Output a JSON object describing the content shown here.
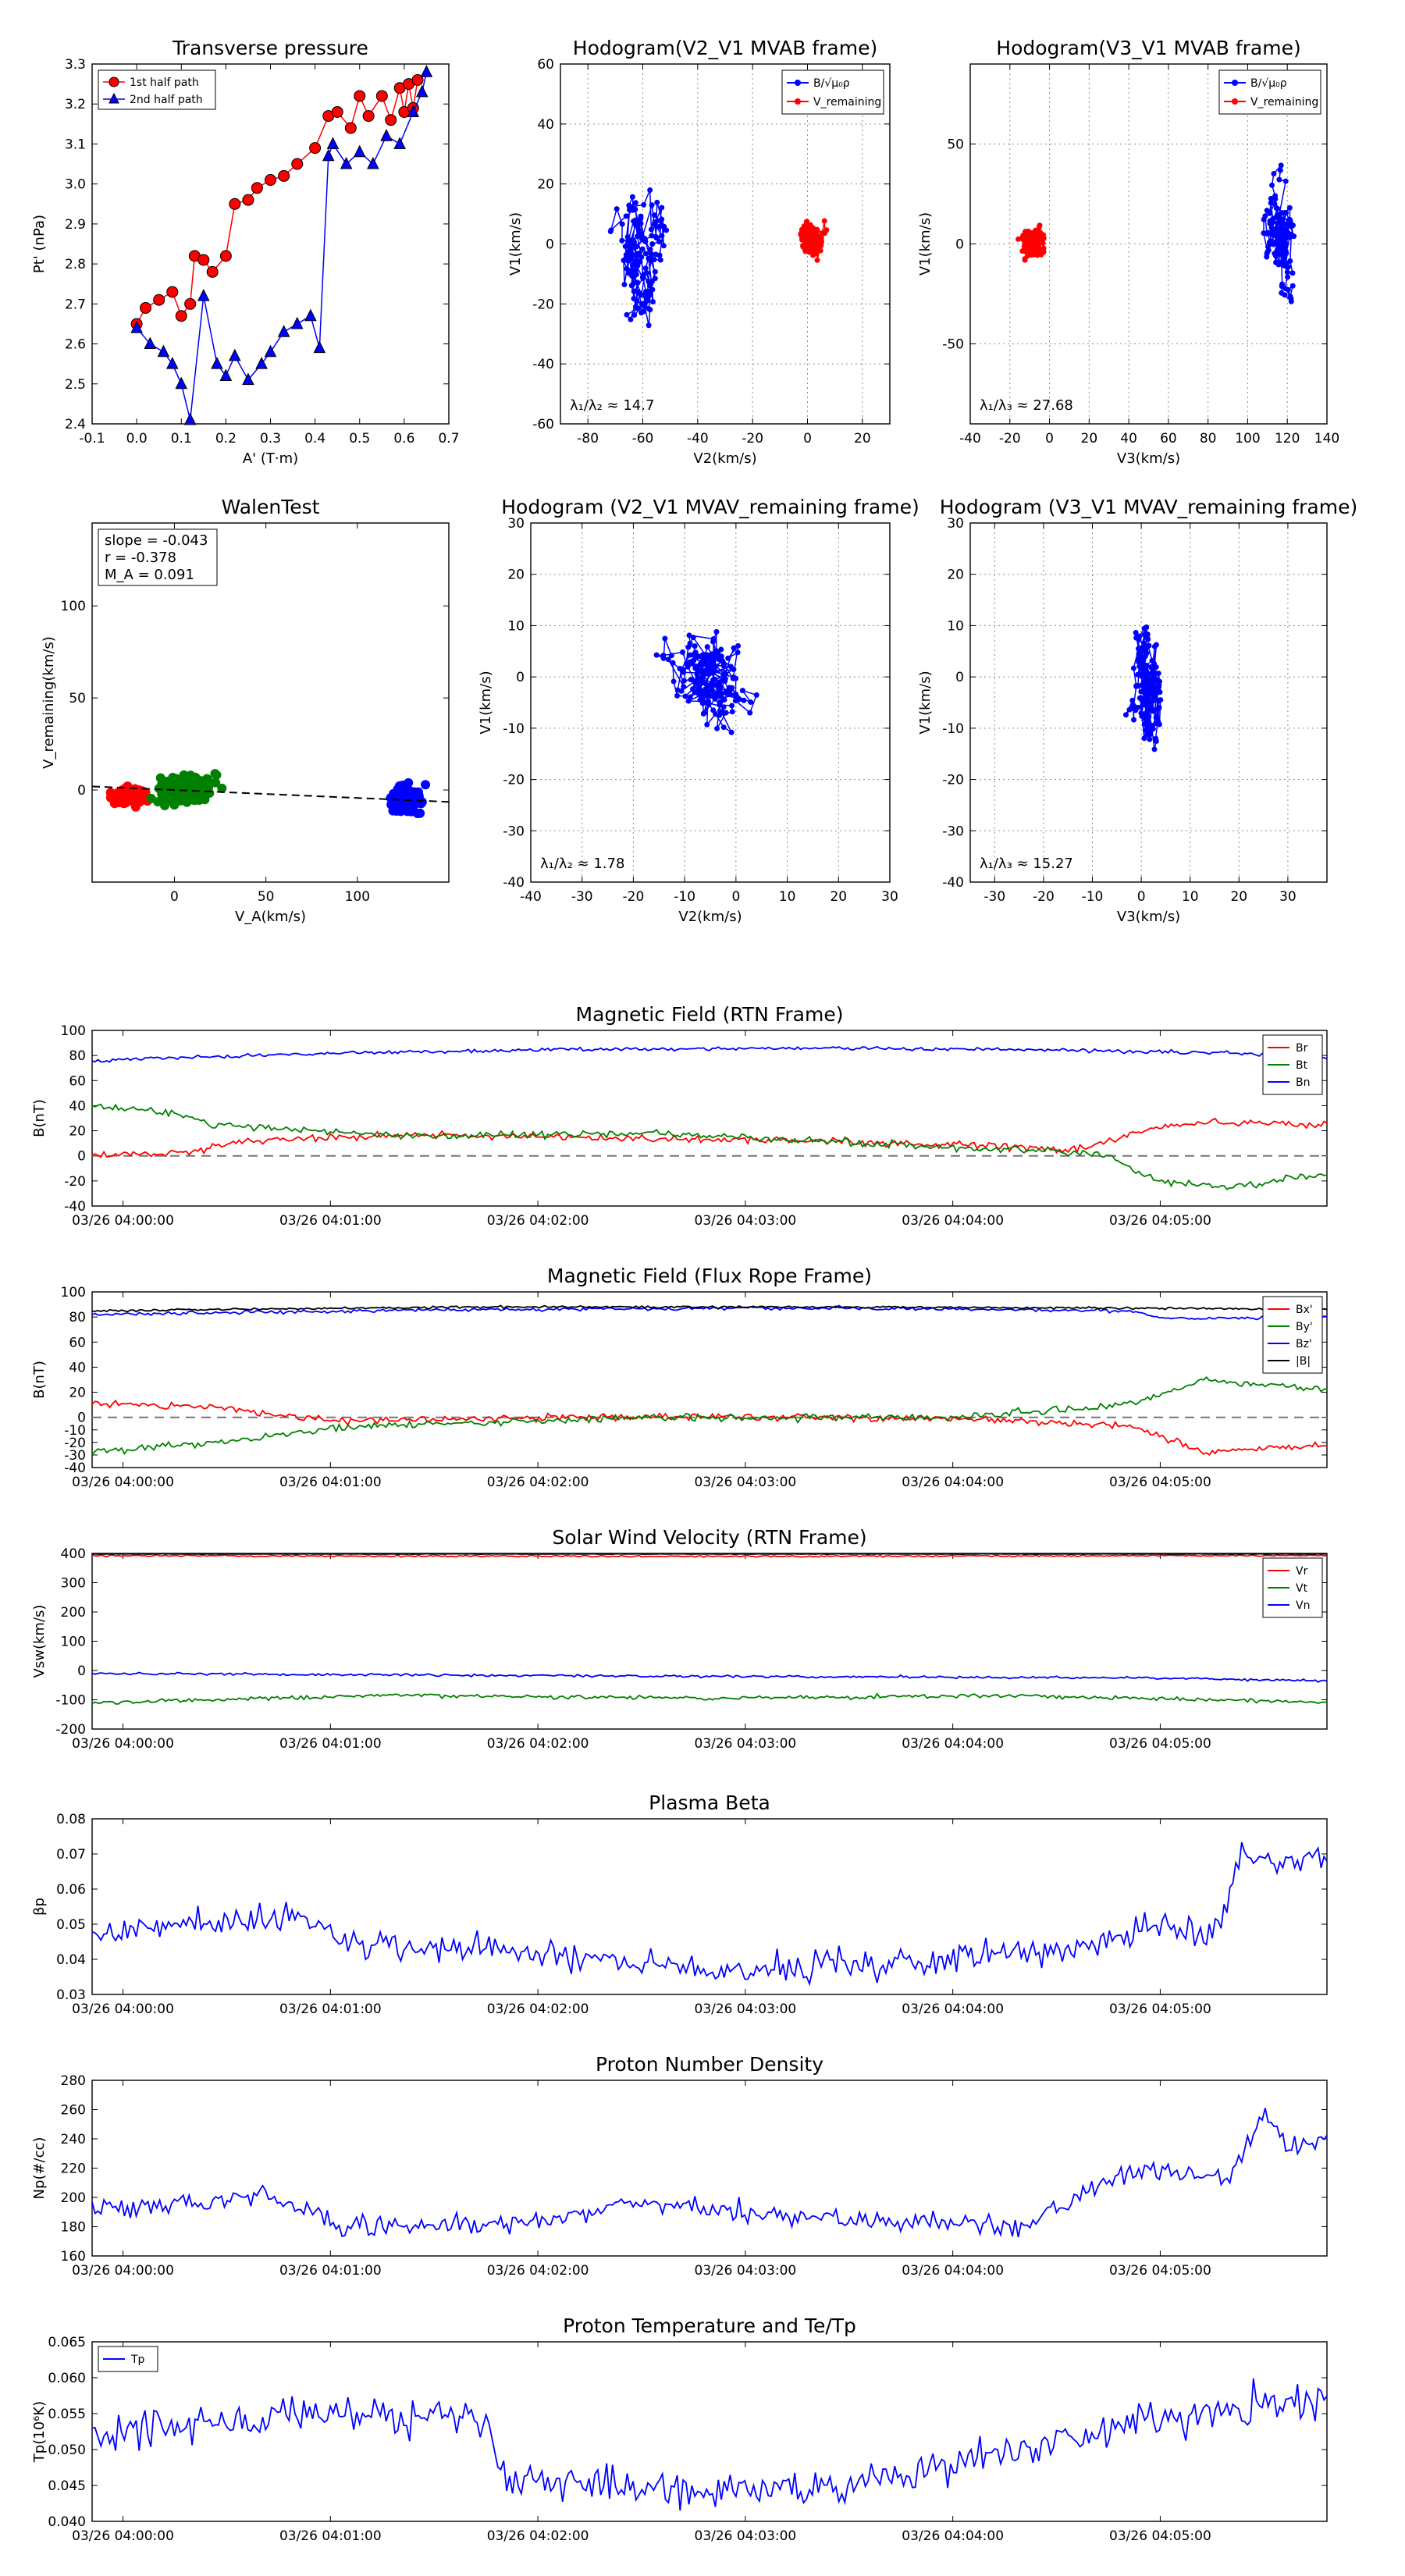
{
  "colors": {
    "red": "#ff0000",
    "green": "#008000",
    "blue": "#0000ff",
    "black": "#000000",
    "gray": "#777777"
  },
  "time_ticks": [
    "03/26 04:00:00",
    "03/26 04:01:00",
    "03/26 04:02:00",
    "03/26 04:03:00",
    "03/26 04:04:00",
    "03/26 04:05:00"
  ],
  "chart_data": [
    {
      "id": "pt",
      "type": "scatter",
      "title": "Transverse pressure",
      "xlabel": "A' (T·m)",
      "ylabel": "Pt' (nPa)",
      "xlim": [
        -0.1,
        0.7
      ],
      "ylim": [
        2.4,
        3.3
      ],
      "xticks": [
        -0.1,
        0.0,
        0.1,
        0.2,
        0.3,
        0.4,
        0.5,
        0.6,
        0.7
      ],
      "yticks": [
        2.4,
        2.5,
        2.6,
        2.7,
        2.8,
        2.9,
        3.0,
        3.1,
        3.2,
        3.3
      ],
      "legend": [
        {
          "label": "1st half path",
          "color": "#ff0000",
          "marker": "circle"
        },
        {
          "label": "2nd half path",
          "color": "#0000ff",
          "marker": "triangle"
        }
      ],
      "series": [
        {
          "name": "1st half path",
          "color": "#ff0000",
          "marker": "circle",
          "x": [
            0.0,
            0.02,
            0.05,
            0.08,
            0.1,
            0.12,
            0.13,
            0.15,
            0.17,
            0.2,
            0.22,
            0.25,
            0.27,
            0.3,
            0.33,
            0.36,
            0.4,
            0.43,
            0.45,
            0.48,
            0.5,
            0.52,
            0.55,
            0.57,
            0.59,
            0.6,
            0.61,
            0.62,
            0.63
          ],
          "y": [
            2.65,
            2.69,
            2.71,
            2.73,
            2.67,
            2.7,
            2.82,
            2.81,
            2.78,
            2.82,
            2.95,
            2.96,
            2.99,
            3.01,
            3.02,
            3.05,
            3.09,
            3.17,
            3.18,
            3.14,
            3.22,
            3.17,
            3.22,
            3.16,
            3.24,
            3.18,
            3.25,
            3.19,
            3.26
          ]
        },
        {
          "name": "2nd half path",
          "color": "#0000ff",
          "marker": "triangle",
          "x": [
            0.0,
            0.03,
            0.06,
            0.08,
            0.1,
            0.12,
            0.15,
            0.18,
            0.2,
            0.22,
            0.25,
            0.28,
            0.3,
            0.33,
            0.36,
            0.39,
            0.41,
            0.43,
            0.44,
            0.47,
            0.5,
            0.53,
            0.56,
            0.59,
            0.62,
            0.64,
            0.65
          ],
          "y": [
            2.64,
            2.6,
            2.58,
            2.55,
            2.5,
            2.41,
            2.72,
            2.55,
            2.52,
            2.57,
            2.51,
            2.55,
            2.58,
            2.63,
            2.65,
            2.67,
            2.59,
            3.07,
            3.1,
            3.05,
            3.08,
            3.05,
            3.12,
            3.1,
            3.18,
            3.23,
            3.28
          ]
        }
      ]
    },
    {
      "id": "h1",
      "type": "line",
      "title": "Hodogram(V2_V1 MVAB frame)",
      "xlabel": "V2(km/s)",
      "ylabel": "V1(km/s)",
      "xlim": [
        -90,
        30
      ],
      "ylim": [
        -60,
        60
      ],
      "xticks": [
        -80,
        -60,
        -40,
        -20,
        0,
        20
      ],
      "yticks": [
        -60,
        -40,
        -20,
        0,
        20,
        40,
        60
      ],
      "legend": [
        {
          "label": "B/√μ₀ρ",
          "color": "#0000ff"
        },
        {
          "label": "V_remaining",
          "color": "#ff0000"
        }
      ],
      "annotation": "λ₁/λ₂ ≈ 14.7",
      "series": [
        {
          "name": "B/√μ₀ρ",
          "color": "#0000ff",
          "center": [
            -62,
            0
          ],
          "spread": [
            9,
            26
          ]
        },
        {
          "name": "V_remaining",
          "color": "#ff0000",
          "center": [
            2,
            0
          ],
          "spread": [
            5,
            10
          ]
        }
      ]
    },
    {
      "id": "h2",
      "type": "line",
      "title": "Hodogram(V3_V1 MVAB frame)",
      "xlabel": "V3(km/s)",
      "ylabel": "V1(km/s)",
      "xlim": [
        -40,
        140
      ],
      "ylim": [
        -90,
        90
      ],
      "xticks": [
        -40,
        -20,
        0,
        20,
        40,
        60,
        80,
        100,
        120,
        140
      ],
      "yticks": [
        -50,
        0,
        50
      ],
      "legend": [
        {
          "label": "B/√μ₀ρ",
          "color": "#0000ff"
        },
        {
          "label": "V_remaining",
          "color": "#ff0000"
        }
      ],
      "annotation": "λ₁/λ₃ ≈ 27.68",
      "series": [
        {
          "name": "B/√μ₀ρ",
          "color": "#0000ff",
          "center": [
            115,
            0
          ],
          "spread": [
            9,
            25
          ]
        },
        {
          "name": "V_remaining",
          "color": "#ff0000",
          "center": [
            -8,
            0
          ],
          "spread": [
            7,
            9
          ]
        }
      ]
    },
    {
      "id": "walen",
      "type": "scatter",
      "title": "WalenTest",
      "xlabel": "V_A(km/s)",
      "ylabel": "V_remaining(km/s)",
      "xlim": [
        -45,
        150
      ],
      "ylim": [
        -50,
        145
      ],
      "xticks": [
        0,
        50,
        100
      ],
      "yticks": [
        0,
        50,
        100
      ],
      "stats": [
        "slope = -0.043",
        "r = -0.378",
        "M_A = 0.091"
      ],
      "fit": {
        "slope": -0.043,
        "intercept": 0
      },
      "series": [
        {
          "name": "red",
          "color": "#ff0000",
          "center": [
            -25,
            -3
          ],
          "spread": [
            10,
            5
          ]
        },
        {
          "name": "green",
          "color": "#008000",
          "center": [
            5,
            0
          ],
          "spread": [
            18,
            9
          ]
        },
        {
          "name": "blue",
          "color": "#0000ff",
          "center": [
            128,
            -5
          ],
          "spread": [
            9,
            8
          ]
        }
      ]
    },
    {
      "id": "h3",
      "type": "line",
      "title": "Hodogram (V2_V1 MVAV_remaining frame)",
      "xlabel": "V2(km/s)",
      "ylabel": "V1(km/s)",
      "xlim": [
        -40,
        30
      ],
      "ylim": [
        -40,
        30
      ],
      "xticks": [
        -40,
        -30,
        -20,
        -10,
        0,
        10,
        20,
        30
      ],
      "yticks": [
        -40,
        -30,
        -20,
        -10,
        0,
        10,
        20,
        30
      ],
      "annotation": "λ₁/λ₂ ≈ 1.78",
      "series": [
        {
          "name": "V",
          "color": "#0000ff",
          "center": [
            -5,
            0
          ],
          "spread": [
            8,
            10
          ]
        }
      ]
    },
    {
      "id": "h4",
      "type": "line",
      "title": "Hodogram (V3_V1 MVAV_remaining frame)",
      "xlabel": "V3(km/s)",
      "ylabel": "V1(km/s)",
      "xlim": [
        -35,
        38
      ],
      "ylim": [
        -40,
        30
      ],
      "xticks": [
        -30,
        -20,
        -10,
        0,
        10,
        20,
        30
      ],
      "yticks": [
        -40,
        -30,
        -20,
        -10,
        0,
        10,
        20,
        30
      ],
      "annotation": "λ₁/λ₃ ≈ 15.27",
      "series": [
        {
          "name": "V",
          "color": "#0000ff",
          "center": [
            1,
            -2
          ],
          "spread": [
            3,
            11
          ]
        }
      ]
    },
    {
      "id": "b_rtn",
      "type": "line",
      "title": "Magnetic Field (RTN Frame)",
      "ylabel": "B(nT)",
      "ylim": [
        -40,
        100
      ],
      "yticks": [
        -40,
        -20,
        0,
        20,
        40,
        60,
        80,
        100
      ],
      "zero_line": true,
      "legend": [
        "Br",
        "Bt",
        "Bn"
      ],
      "series": [
        {
          "name": "Br",
          "color": "#ff0000",
          "knots": [
            [
              0,
              0
            ],
            [
              0.08,
              3
            ],
            [
              0.12,
              12
            ],
            [
              0.25,
              17
            ],
            [
              0.4,
              14
            ],
            [
              0.6,
              12
            ],
            [
              0.8,
              5
            ],
            [
              0.86,
              22
            ],
            [
              0.9,
              27
            ],
            [
              1,
              25
            ]
          ],
          "noise": 2
        },
        {
          "name": "Bt",
          "color": "#008000",
          "knots": [
            [
              0,
              40
            ],
            [
              0.06,
              35
            ],
            [
              0.1,
              25
            ],
            [
              0.25,
              16
            ],
            [
              0.45,
              18
            ],
            [
              0.65,
              9
            ],
            [
              0.82,
              1
            ],
            [
              0.86,
              -20
            ],
            [
              0.92,
              -25
            ],
            [
              1,
              -15
            ]
          ],
          "noise": 2
        },
        {
          "name": "Bn",
          "color": "#0000ff",
          "knots": [
            [
              0,
              76
            ],
            [
              0.2,
              82
            ],
            [
              0.4,
              85
            ],
            [
              0.6,
              86
            ],
            [
              0.8,
              84
            ],
            [
              0.92,
              82
            ],
            [
              1,
              78
            ]
          ],
          "noise": 1
        }
      ]
    },
    {
      "id": "b_fr",
      "type": "line",
      "title": "Magnetic Field (Flux Rope Frame)",
      "ylabel": "B(nT)",
      "ylim": [
        -40,
        100
      ],
      "yticks": [
        -40,
        -30,
        -20,
        -10,
        0,
        20,
        40,
        60,
        80,
        100
      ],
      "zero_line": true,
      "legend": [
        "Bx'",
        "By'",
        "Bz'",
        "|B|"
      ],
      "series": [
        {
          "name": "Bx'",
          "color": "#ff0000",
          "knots": [
            [
              0,
              12
            ],
            [
              0.1,
              8
            ],
            [
              0.2,
              -3
            ],
            [
              0.45,
              1
            ],
            [
              0.7,
              -1
            ],
            [
              0.84,
              -7
            ],
            [
              0.9,
              -28
            ],
            [
              1,
              -22
            ]
          ],
          "noise": 2
        },
        {
          "name": "By'",
          "color": "#008000",
          "knots": [
            [
              0,
              -27
            ],
            [
              0.1,
              -20
            ],
            [
              0.2,
              -8
            ],
            [
              0.45,
              0
            ],
            [
              0.7,
              0
            ],
            [
              0.84,
              10
            ],
            [
              0.9,
              30
            ],
            [
              1,
              22
            ]
          ],
          "noise": 2
        },
        {
          "name": "Bz'",
          "color": "#0000ff",
          "knots": [
            [
              0,
              82
            ],
            [
              0.3,
              86
            ],
            [
              0.6,
              87
            ],
            [
              0.84,
              85
            ],
            [
              0.87,
              79
            ],
            [
              1,
              80
            ]
          ],
          "noise": 1
        },
        {
          "name": "|B|",
          "color": "#000000",
          "knots": [
            [
              0,
              85
            ],
            [
              0.3,
              88
            ],
            [
              0.6,
              88
            ],
            [
              0.85,
              87
            ],
            [
              1,
              86
            ]
          ],
          "noise": 0.6
        }
      ]
    },
    {
      "id": "vsw",
      "type": "line",
      "title": "Solar Wind Velocity (RTN Frame)",
      "ylabel": "Vsw(km/s)",
      "ylim": [
        -200,
        400
      ],
      "yticks": [
        -200,
        -100,
        0,
        100,
        200,
        300,
        400
      ],
      "legend": [
        "Vr",
        "Vt",
        "Vn"
      ],
      "series": [
        {
          "name": "Vr",
          "color": "#ff0000",
          "knots": [
            [
              0,
              392
            ],
            [
              0.5,
              390
            ],
            [
              1,
              393
            ]
          ],
          "noise": 2
        },
        {
          "name": "Vt",
          "color": "#008000",
          "knots": [
            [
              0,
              -110
            ],
            [
              0.25,
              -85
            ],
            [
              0.5,
              -95
            ],
            [
              0.75,
              -85
            ],
            [
              1,
              -110
            ]
          ],
          "noise": 5
        },
        {
          "name": "Vn",
          "color": "#0000ff",
          "knots": [
            [
              0,
              -10
            ],
            [
              0.5,
              -20
            ],
            [
              0.85,
              -25
            ],
            [
              1,
              -35
            ]
          ],
          "noise": 3
        },
        {
          "name": "black",
          "color": "#000000",
          "knots": [
            [
              0,
              398
            ],
            [
              1,
              398
            ]
          ],
          "noise": 0.6
        }
      ]
    },
    {
      "id": "beta",
      "type": "line",
      "title": "Plasma Beta",
      "ylabel": "βp",
      "ylim": [
        0.03,
        0.08
      ],
      "yticks": [
        0.03,
        0.04,
        0.05,
        0.06,
        0.07,
        0.08
      ],
      "series": [
        {
          "name": "beta",
          "color": "#0000ff",
          "knots": [
            [
              0,
              0.047
            ],
            [
              0.16,
              0.053
            ],
            [
              0.2,
              0.045
            ],
            [
              0.35,
              0.042
            ],
            [
              0.5,
              0.037
            ],
            [
              0.65,
              0.039
            ],
            [
              0.8,
              0.043
            ],
            [
              0.87,
              0.05
            ],
            [
              0.91,
              0.047
            ],
            [
              0.93,
              0.07
            ],
            [
              0.96,
              0.067
            ],
            [
              1,
              0.07
            ]
          ],
          "noise": 0.003
        }
      ]
    },
    {
      "id": "np",
      "type": "line",
      "title": "Proton Number Density",
      "ylabel": "Np(#/cc)",
      "ylim": [
        160,
        280
      ],
      "yticks": [
        160,
        180,
        200,
        220,
        240,
        260,
        280
      ],
      "series": [
        {
          "name": "Np",
          "color": "#0000ff",
          "knots": [
            [
              0,
              192
            ],
            [
              0.15,
              200
            ],
            [
              0.2,
              180
            ],
            [
              0.35,
              182
            ],
            [
              0.45,
              197
            ],
            [
              0.55,
              188
            ],
            [
              0.75,
              180
            ],
            [
              0.85,
              220
            ],
            [
              0.92,
              213
            ],
            [
              0.95,
              258
            ],
            [
              0.97,
              236
            ],
            [
              1,
              240
            ]
          ],
          "noise": 5
        }
      ]
    },
    {
      "id": "tp",
      "type": "line",
      "title": "Proton Temperature and Te/Tp",
      "ylabel": "Tp(10⁶K)",
      "ylim": [
        0.04,
        0.065
      ],
      "yticks": [
        0.04,
        0.045,
        0.05,
        0.055,
        0.06,
        0.065
      ],
      "legend": [
        "Tp"
      ],
      "series": [
        {
          "name": "Tp",
          "color": "#0000ff",
          "knots": [
            [
              0,
              0.052
            ],
            [
              0.15,
              0.055
            ],
            [
              0.32,
              0.054
            ],
            [
              0.33,
              0.046
            ],
            [
              0.5,
              0.044
            ],
            [
              0.65,
              0.046
            ],
            [
              0.8,
              0.052
            ],
            [
              1,
              0.058
            ]
          ],
          "noise": 0.002
        }
      ]
    }
  ]
}
